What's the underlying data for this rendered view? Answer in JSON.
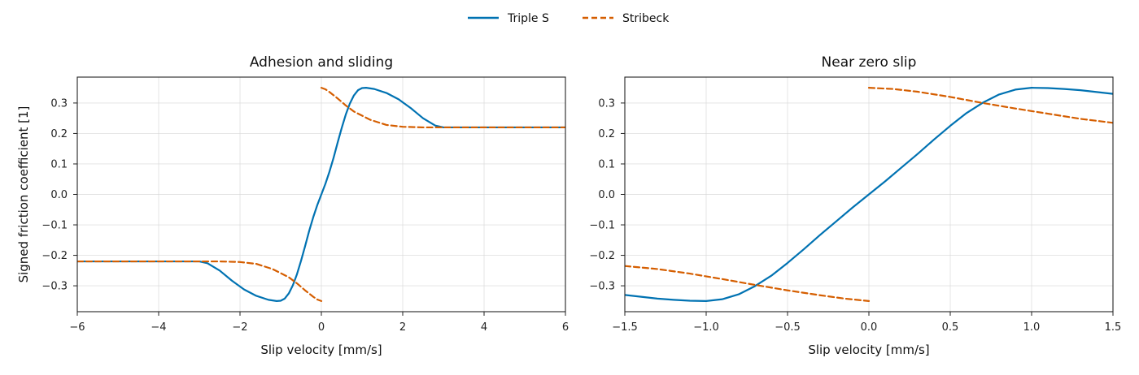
{
  "legend": {
    "items": [
      {
        "label": "Triple S",
        "color": "#0072b2",
        "dash": "solid"
      },
      {
        "label": "Stribeck",
        "color": "#d55e00",
        "dash": "dashed"
      }
    ],
    "placement": "top-center"
  },
  "chart_data": [
    {
      "type": "line",
      "title": "Adhesion and sliding",
      "xlabel": "Slip velocity [mm/s]",
      "ylabel": "Signed friction coefficient [1]",
      "xlim": [
        -6,
        6
      ],
      "ylim": [
        -0.385,
        0.385
      ],
      "grid": true,
      "xticks": [
        -6,
        -4,
        -2,
        0,
        2,
        4,
        6
      ],
      "xtick_labels": [
        "−6",
        "−4",
        "−2",
        "0",
        "2",
        "4",
        "6"
      ],
      "yticks": [
        -0.3,
        -0.2,
        -0.1,
        0.0,
        0.1,
        0.2,
        0.3
      ],
      "ytick_labels": [
        "−0.3",
        "−0.2",
        "−0.1",
        "0.0",
        "0.1",
        "0.2",
        "0.3"
      ],
      "series": [
        {
          "name": "Triple S",
          "color": "#0072b2",
          "dash": "solid",
          "segments": [
            [
              [
                -6.0,
                -0.22
              ],
              [
                -3.0,
                -0.22
              ],
              [
                -2.8,
                -0.226
              ],
              [
                -2.5,
                -0.25
              ],
              [
                -2.2,
                -0.283
              ],
              [
                -1.9,
                -0.312
              ],
              [
                -1.6,
                -0.333
              ],
              [
                -1.3,
                -0.346
              ],
              [
                -1.1,
                -0.35
              ],
              [
                -1.0,
                -0.349
              ],
              [
                -0.9,
                -0.342
              ],
              [
                -0.8,
                -0.325
              ],
              [
                -0.7,
                -0.298
              ],
              [
                -0.6,
                -0.262
              ],
              [
                -0.5,
                -0.218
              ],
              [
                -0.4,
                -0.17
              ],
              [
                -0.3,
                -0.12
              ],
              [
                -0.2,
                -0.075
              ],
              [
                -0.1,
                -0.035
              ],
              [
                0.0,
                0.0
              ],
              [
                0.1,
                0.035
              ],
              [
                0.2,
                0.075
              ],
              [
                0.3,
                0.12
              ],
              [
                0.4,
                0.17
              ],
              [
                0.5,
                0.218
              ],
              [
                0.6,
                0.262
              ],
              [
                0.7,
                0.298
              ],
              [
                0.8,
                0.325
              ],
              [
                0.9,
                0.342
              ],
              [
                1.0,
                0.349
              ],
              [
                1.1,
                0.35
              ],
              [
                1.3,
                0.346
              ],
              [
                1.6,
                0.333
              ],
              [
                1.9,
                0.312
              ],
              [
                2.2,
                0.283
              ],
              [
                2.5,
                0.25
              ],
              [
                2.8,
                0.226
              ],
              [
                3.0,
                0.22
              ],
              [
                6.0,
                0.22
              ]
            ]
          ]
        },
        {
          "name": "Stribeck",
          "color": "#d55e00",
          "dash": "dashed",
          "segments": [
            [
              [
                -6.0,
                -0.22
              ],
              [
                -2.5,
                -0.22
              ],
              [
                -2.0,
                -0.222
              ],
              [
                -1.6,
                -0.228
              ],
              [
                -1.2,
                -0.245
              ],
              [
                -0.8,
                -0.272
              ],
              [
                -0.6,
                -0.292
              ],
              [
                -0.4,
                -0.315
              ],
              [
                -0.2,
                -0.336
              ],
              [
                -0.1,
                -0.345
              ],
              [
                0.0,
                -0.35
              ]
            ],
            [
              [
                0.0,
                0.35
              ],
              [
                0.1,
                0.345
              ],
              [
                0.2,
                0.336
              ],
              [
                0.4,
                0.315
              ],
              [
                0.6,
                0.292
              ],
              [
                0.8,
                0.272
              ],
              [
                1.2,
                0.245
              ],
              [
                1.6,
                0.228
              ],
              [
                2.0,
                0.222
              ],
              [
                2.5,
                0.22
              ],
              [
                6.0,
                0.22
              ]
            ]
          ]
        }
      ]
    },
    {
      "type": "line",
      "title": "Near zero slip",
      "xlabel": "Slip velocity [mm/s]",
      "ylabel": "",
      "xlim": [
        -1.5,
        1.5
      ],
      "ylim": [
        -0.385,
        0.385
      ],
      "grid": true,
      "xticks": [
        -1.5,
        -1.0,
        -0.5,
        0.0,
        0.5,
        1.0,
        1.5
      ],
      "xtick_labels": [
        "−1.5",
        "−1.0",
        "−0.5",
        "0.0",
        "0.5",
        "1.0",
        "1.5"
      ],
      "yticks": [
        -0.3,
        -0.2,
        -0.1,
        0.0,
        0.1,
        0.2,
        0.3
      ],
      "ytick_labels": [
        "−0.3",
        "−0.2",
        "−0.1",
        "0.0",
        "0.1",
        "0.2",
        "0.3"
      ],
      "series": [
        {
          "name": "Triple S",
          "color": "#0072b2",
          "dash": "solid",
          "segments": [
            [
              [
                -1.5,
                -0.33
              ],
              [
                -1.4,
                -0.336
              ],
              [
                -1.3,
                -0.342
              ],
              [
                -1.2,
                -0.346
              ],
              [
                -1.1,
                -0.349
              ],
              [
                -1.0,
                -0.35
              ],
              [
                -0.9,
                -0.344
              ],
              [
                -0.8,
                -0.328
              ],
              [
                -0.7,
                -0.301
              ],
              [
                -0.6,
                -0.267
              ],
              [
                -0.5,
                -0.225
              ],
              [
                -0.4,
                -0.18
              ],
              [
                -0.3,
                -0.133
              ],
              [
                -0.2,
                -0.088
              ],
              [
                -0.1,
                -0.043
              ],
              [
                0.0,
                0.0
              ],
              [
                0.1,
                0.043
              ],
              [
                0.2,
                0.088
              ],
              [
                0.3,
                0.133
              ],
              [
                0.4,
                0.18
              ],
              [
                0.5,
                0.225
              ],
              [
                0.6,
                0.267
              ],
              [
                0.7,
                0.301
              ],
              [
                0.8,
                0.328
              ],
              [
                0.9,
                0.344
              ],
              [
                1.0,
                0.35
              ],
              [
                1.1,
                0.349
              ],
              [
                1.2,
                0.346
              ],
              [
                1.3,
                0.342
              ],
              [
                1.4,
                0.336
              ],
              [
                1.5,
                0.33
              ]
            ]
          ]
        },
        {
          "name": "Stribeck",
          "color": "#d55e00",
          "dash": "dashed",
          "segments": [
            [
              [
                -1.5,
                -0.235
              ],
              [
                -1.3,
                -0.245
              ],
              [
                -1.1,
                -0.26
              ],
              [
                -0.9,
                -0.278
              ],
              [
                -0.7,
                -0.297
              ],
              [
                -0.5,
                -0.315
              ],
              [
                -0.3,
                -0.331
              ],
              [
                -0.15,
                -0.342
              ],
              [
                0.0,
                -0.35
              ]
            ],
            [
              [
                0.0,
                0.35
              ],
              [
                0.15,
                0.346
              ],
              [
                0.3,
                0.337
              ],
              [
                0.5,
                0.32
              ],
              [
                0.7,
                0.3
              ],
              [
                0.9,
                0.282
              ],
              [
                1.1,
                0.265
              ],
              [
                1.3,
                0.248
              ],
              [
                1.5,
                0.235
              ]
            ]
          ]
        }
      ]
    }
  ]
}
